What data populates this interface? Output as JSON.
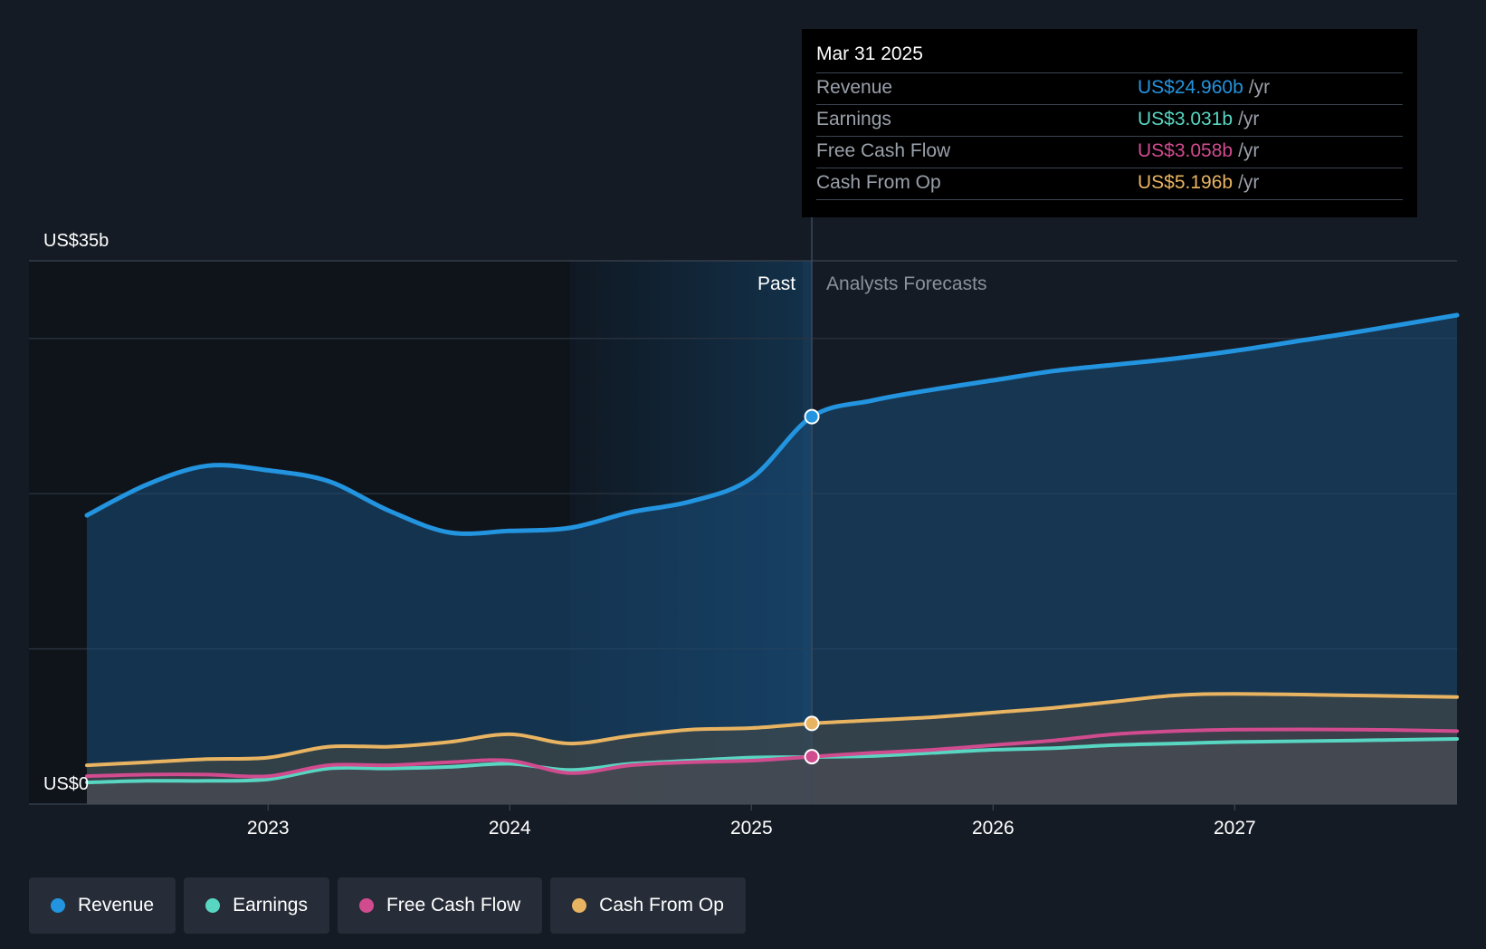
{
  "chart_data": {
    "type": "area",
    "title": "",
    "xlabel": "",
    "ylabel": "",
    "y_axis": {
      "top_label": "US$35b",
      "bottom_label": "US$0",
      "ylim": [
        0,
        35
      ]
    },
    "xlim": [
      2022.25,
      2027.92
    ],
    "x_ticks": [
      {
        "value": 2023,
        "label": "2023"
      },
      {
        "value": 2024,
        "label": "2024"
      },
      {
        "value": 2025,
        "label": "2025"
      },
      {
        "value": 2026,
        "label": "2026"
      },
      {
        "value": 2027,
        "label": "2027"
      }
    ],
    "past_label": "Past",
    "forecast_label": "Analysts Forecasts",
    "past_region_start": 2024.25,
    "divider_x": 2025.25,
    "series": [
      {
        "name": "Revenue",
        "color": "#2394df",
        "points": [
          [
            2022.25,
            18.6
          ],
          [
            2022.5,
            20.6
          ],
          [
            2022.75,
            21.8
          ],
          [
            2023.0,
            21.5
          ],
          [
            2023.25,
            20.8
          ],
          [
            2023.5,
            18.9
          ],
          [
            2023.75,
            17.5
          ],
          [
            2024.0,
            17.6
          ],
          [
            2024.25,
            17.8
          ],
          [
            2024.5,
            18.8
          ],
          [
            2024.75,
            19.5
          ],
          [
            2025.0,
            21.0
          ],
          [
            2025.25,
            24.96
          ],
          [
            2025.5,
            26.0
          ],
          [
            2025.75,
            26.7
          ],
          [
            2026.0,
            27.3
          ],
          [
            2026.25,
            27.9
          ],
          [
            2026.5,
            28.3
          ],
          [
            2026.75,
            28.7
          ],
          [
            2027.0,
            29.2
          ],
          [
            2027.25,
            29.8
          ],
          [
            2027.5,
            30.4
          ],
          [
            2027.92,
            31.5
          ]
        ]
      },
      {
        "name": "Cash From Op",
        "color": "#e9b462",
        "points": [
          [
            2022.25,
            2.5
          ],
          [
            2022.5,
            2.7
          ],
          [
            2022.75,
            2.9
          ],
          [
            2023.0,
            3.0
          ],
          [
            2023.25,
            3.7
          ],
          [
            2023.5,
            3.7
          ],
          [
            2023.75,
            4.0
          ],
          [
            2024.0,
            4.5
          ],
          [
            2024.25,
            3.9
          ],
          [
            2024.5,
            4.4
          ],
          [
            2024.75,
            4.8
          ],
          [
            2025.0,
            4.9
          ],
          [
            2025.25,
            5.196
          ],
          [
            2025.5,
            5.4
          ],
          [
            2025.75,
            5.6
          ],
          [
            2026.0,
            5.9
          ],
          [
            2026.25,
            6.2
          ],
          [
            2026.5,
            6.6
          ],
          [
            2026.75,
            7.0
          ],
          [
            2027.0,
            7.1
          ],
          [
            2027.5,
            7.0
          ],
          [
            2027.92,
            6.9
          ]
        ]
      },
      {
        "name": "Free Cash Flow",
        "color": "#d14b8f",
        "points": [
          [
            2022.25,
            1.8
          ],
          [
            2022.5,
            1.9
          ],
          [
            2022.75,
            1.9
          ],
          [
            2023.0,
            1.8
          ],
          [
            2023.25,
            2.5
          ],
          [
            2023.5,
            2.5
          ],
          [
            2023.75,
            2.7
          ],
          [
            2024.0,
            2.8
          ],
          [
            2024.25,
            2.0
          ],
          [
            2024.5,
            2.5
          ],
          [
            2024.75,
            2.7
          ],
          [
            2025.0,
            2.8
          ],
          [
            2025.25,
            3.058
          ],
          [
            2025.5,
            3.3
          ],
          [
            2025.75,
            3.5
          ],
          [
            2026.0,
            3.8
          ],
          [
            2026.25,
            4.1
          ],
          [
            2026.5,
            4.5
          ],
          [
            2026.75,
            4.7
          ],
          [
            2027.0,
            4.8
          ],
          [
            2027.5,
            4.8
          ],
          [
            2027.92,
            4.7
          ]
        ]
      },
      {
        "name": "Earnings",
        "color": "#58d6c2",
        "points": [
          [
            2022.25,
            1.4
          ],
          [
            2022.5,
            1.5
          ],
          [
            2022.75,
            1.5
          ],
          [
            2023.0,
            1.6
          ],
          [
            2023.25,
            2.3
          ],
          [
            2023.5,
            2.3
          ],
          [
            2023.75,
            2.4
          ],
          [
            2024.0,
            2.6
          ],
          [
            2024.25,
            2.2
          ],
          [
            2024.5,
            2.6
          ],
          [
            2024.75,
            2.8
          ],
          [
            2025.0,
            3.0
          ],
          [
            2025.25,
            3.031
          ],
          [
            2025.5,
            3.1
          ],
          [
            2025.75,
            3.3
          ],
          [
            2026.0,
            3.5
          ],
          [
            2026.25,
            3.6
          ],
          [
            2026.5,
            3.8
          ],
          [
            2026.75,
            3.9
          ],
          [
            2027.0,
            4.0
          ],
          [
            2027.5,
            4.1
          ],
          [
            2027.92,
            4.2
          ]
        ]
      }
    ],
    "markers": [
      {
        "series": "Revenue",
        "x": 2025.25,
        "y": 24.96
      },
      {
        "series": "Cash From Op",
        "x": 2025.25,
        "y": 5.196
      },
      {
        "series": "Free Cash Flow",
        "x": 2025.25,
        "y": 3.058
      }
    ]
  },
  "tooltip": {
    "date": "Mar 31 2025",
    "rows": [
      {
        "label": "Revenue",
        "value": "US$24.960b",
        "unit": "/yr",
        "color": "#2394df"
      },
      {
        "label": "Earnings",
        "value": "US$3.031b",
        "unit": "/yr",
        "color": "#58d6c2"
      },
      {
        "label": "Free Cash Flow",
        "value": "US$3.058b",
        "unit": "/yr",
        "color": "#d14b8f"
      },
      {
        "label": "Cash From Op",
        "value": "US$5.196b",
        "unit": "/yr",
        "color": "#e9b462"
      }
    ]
  },
  "legend": [
    {
      "label": "Revenue",
      "color": "#2394df"
    },
    {
      "label": "Earnings",
      "color": "#58d6c2"
    },
    {
      "label": "Free Cash Flow",
      "color": "#d14b8f"
    },
    {
      "label": "Cash From Op",
      "color": "#e9b462"
    }
  ]
}
